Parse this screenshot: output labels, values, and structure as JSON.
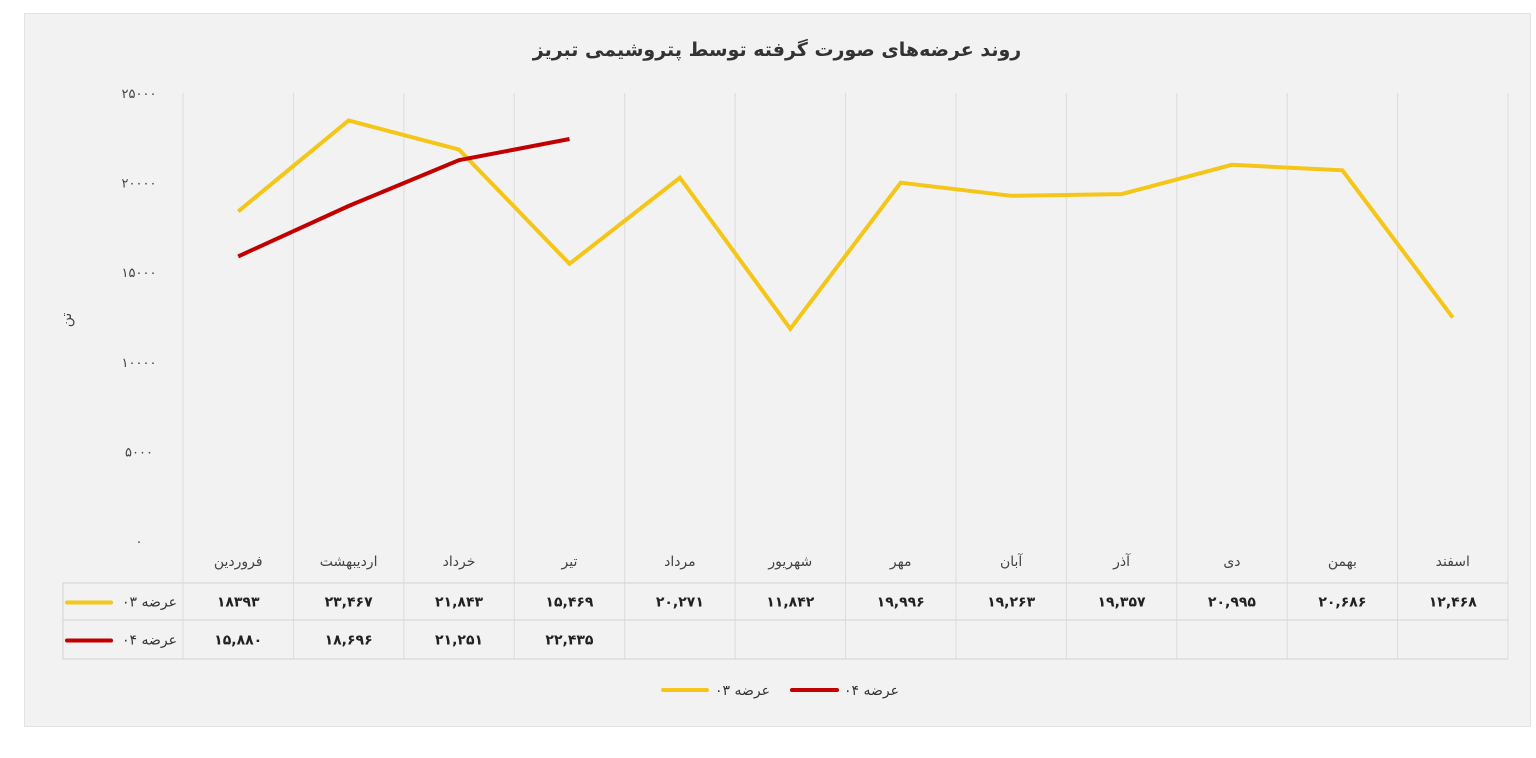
{
  "chart_data": {
    "type": "line",
    "title": "روند عرضه‌های صورت گرفته توسط پتروشیمی تبریز",
    "ylabel": "تن",
    "ylim": [
      0,
      25000
    ],
    "y_ticks": [
      "۰",
      "۵۰۰۰",
      "۱۰۰۰۰",
      "۱۵۰۰۰",
      "۲۰۰۰۰",
      "۲۵۰۰۰"
    ],
    "y_tick_values": [
      0,
      5000,
      10000,
      15000,
      20000,
      25000
    ],
    "categories": [
      "فروردین",
      "اردیبهشت",
      "خرداد",
      "تیر",
      "مرداد",
      "شهریور",
      "مهر",
      "آبان",
      "آذر",
      "دی",
      "بهمن",
      "اسفند"
    ],
    "grid": true,
    "legend_position": "bottom",
    "series": [
      {
        "name": "عرضه ۰۳",
        "color": "#f5c518",
        "values": [
          18393,
          23467,
          21843,
          15469,
          20271,
          11842,
          19996,
          19263,
          19357,
          20995,
          20686,
          12468
        ],
        "labels": [
          "۱۸۳۹۳",
          "۲۳,۴۶۷",
          "۲۱,۸۴۳",
          "۱۵,۴۶۹",
          "۲۰,۲۷۱",
          "۱۱,۸۴۲",
          "۱۹,۹۹۶",
          "۱۹,۲۶۳",
          "۱۹,۳۵۷",
          "۲۰,۹۹۵",
          "۲۰,۶۸۶",
          "۱۲,۴۶۸"
        ]
      },
      {
        "name": "عرضه ۰۴",
        "color": "#c00000",
        "values": [
          15880,
          18696,
          21251,
          22435,
          null,
          null,
          null,
          null,
          null,
          null,
          null,
          null
        ],
        "labels": [
          "۱۵,۸۸۰",
          "۱۸,۶۹۶",
          "۲۱,۲۵۱",
          "۲۲,۴۳۵",
          "",
          "",
          "",
          "",
          "",
          "",
          "",
          ""
        ]
      }
    ]
  }
}
